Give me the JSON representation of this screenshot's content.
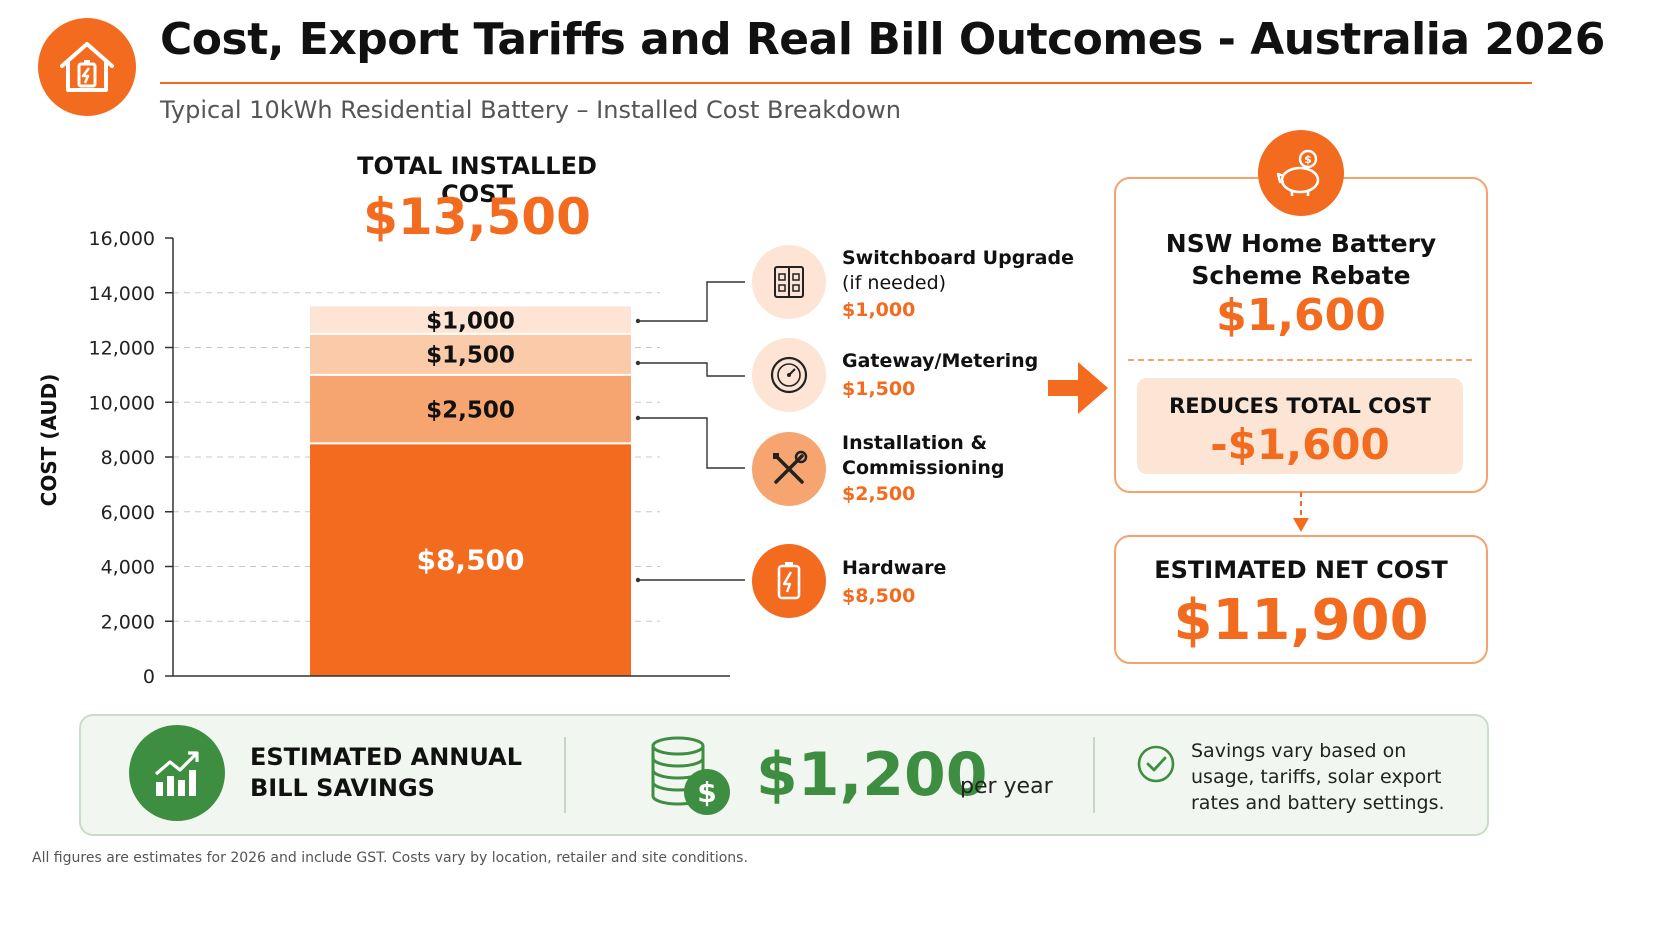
{
  "header": {
    "title": "Cost, Export Tariffs and Real Bill Outcomes - Australia 2026",
    "subtitle": "Typical 10kWh Residential Battery – Installed Cost Breakdown",
    "logo_icon": "house-battery-icon"
  },
  "total": {
    "label": "TOTAL INSTALLED COST",
    "value": "$13,500"
  },
  "chart_data": {
    "type": "bar",
    "stacked": true,
    "categories": [
      "Typical 10kWh Residential Battery"
    ],
    "series": [
      {
        "name": "Hardware",
        "values": [
          8500
        ],
        "label": "$8,500",
        "color": "#f26b1f"
      },
      {
        "name": "Installation & Commissioning",
        "values": [
          2500
        ],
        "label": "$2,500",
        "color": "#f7a570"
      },
      {
        "name": "Gateway/Metering",
        "values": [
          1500
        ],
        "label": "$1,500",
        "color": "#fbcaa8"
      },
      {
        "name": "Switchboard Upgrade",
        "values": [
          1000
        ],
        "label": "$1,000",
        "color": "#fde4d4"
      }
    ],
    "ylabel": "COST (AUD)",
    "xlabel": "",
    "ylim": [
      0,
      16000
    ],
    "yticks": [
      0,
      2000,
      4000,
      6000,
      8000,
      10000,
      12000,
      14000,
      16000
    ],
    "ytick_labels": [
      "0",
      "2,000",
      "4,000",
      "6,000",
      "8,000",
      "10,000",
      "12,000",
      "14,000",
      "16,000"
    ],
    "grid": true
  },
  "legend": [
    {
      "title": "Switchboard Upgrade",
      "sub": "(if needed)",
      "value": "$1,000",
      "icon": "switchboard-icon"
    },
    {
      "title": "Gateway/Metering",
      "sub": "",
      "value": "$1,500",
      "icon": "meter-icon"
    },
    {
      "title": "Installation &",
      "title2": "Commissioning",
      "value": "$2,500",
      "icon": "tools-icon"
    },
    {
      "title": "Hardware",
      "sub": "",
      "value": "$8,500",
      "icon": "battery-icon"
    }
  ],
  "rebate": {
    "title_line1": "NSW Home Battery",
    "title_line2": "Scheme Rebate",
    "value": "$1,600",
    "reduces_label": "REDUCES TOTAL COST",
    "reduces_value": "-$1,600",
    "icon": "piggy-bank-icon"
  },
  "net_cost": {
    "label": "ESTIMATED NET COST",
    "value": "$11,900"
  },
  "savings": {
    "label_line1": "ESTIMATED ANNUAL",
    "label_line2": "BILL SAVINGS",
    "value": "$1,200",
    "unit": "per year",
    "note": "Savings vary based on usage, tariffs, solar export rates and battery settings.",
    "colors": {
      "green": "#3e8e41"
    }
  },
  "footnote": "All figures are estimates for 2026 and include GST. Costs vary by location, retailer and site conditions.",
  "colors": {
    "accent": "#f26b1f",
    "green": "#3e8e41"
  }
}
